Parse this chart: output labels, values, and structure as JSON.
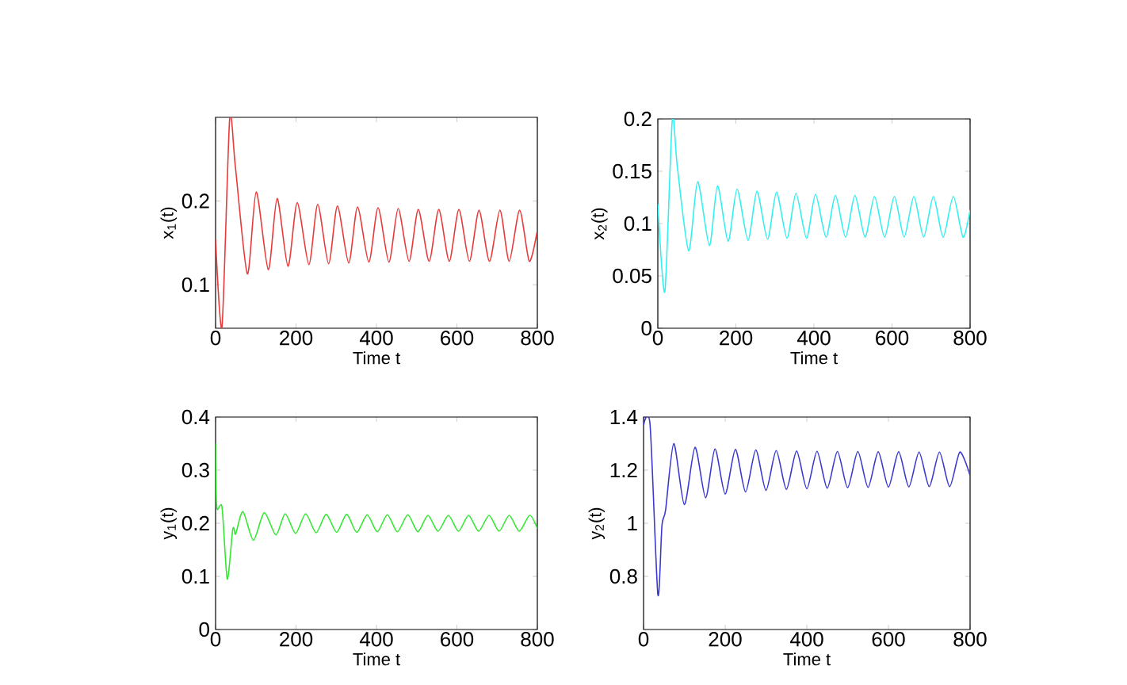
{
  "chart_data": [
    {
      "type": "line",
      "xlabel": "Time t",
      "ylabel": "x$_{1}$(t)",
      "xlim": [
        0,
        800
      ],
      "xticks": [
        0,
        200,
        400,
        600,
        800
      ],
      "ylim": [
        0.048,
        0.3
      ],
      "yticks": [
        0.1,
        0.2
      ],
      "grid": false,
      "x": [
        0,
        16,
        35,
        49,
        79,
        101,
        131,
        153,
        180,
        203,
        232,
        254,
        281,
        303,
        331,
        353,
        381,
        404,
        431,
        454,
        481,
        504,
        531,
        555,
        581,
        605,
        631,
        655,
        681,
        707,
        730,
        756,
        780,
        800
      ],
      "series": [
        {
          "color": "#e83a3a",
          "values": [
            0.154,
            0.05,
            0.298,
            0.242,
            0.113,
            0.211,
            0.118,
            0.203,
            0.122,
            0.198,
            0.124,
            0.196,
            0.125,
            0.194,
            0.126,
            0.193,
            0.127,
            0.192,
            0.127,
            0.191,
            0.128,
            0.19,
            0.128,
            0.19,
            0.128,
            0.19,
            0.128,
            0.189,
            0.128,
            0.189,
            0.128,
            0.189,
            0.128,
            0.165
          ]
        }
      ]
    },
    {
      "type": "line",
      "xlabel": "Time t",
      "ylabel": "x$_{2}$(t)",
      "xlim": [
        0,
        800
      ],
      "xticks": [
        0,
        200,
        400,
        600,
        800
      ],
      "ylim": [
        0,
        0.2
      ],
      "yticks": [
        0,
        0.05,
        0.1,
        0.15,
        0.2
      ],
      "grid": false,
      "x": [
        0,
        18,
        37,
        50,
        79,
        102,
        132,
        153,
        180,
        203,
        231,
        254,
        281,
        304,
        331,
        354,
        381,
        404,
        431,
        455,
        481,
        505,
        531,
        555,
        581,
        606,
        631,
        656,
        681,
        706,
        731,
        757,
        782,
        800
      ],
      "series": [
        {
          "color": "#33f0f0",
          "values": [
            0.119,
            0.035,
            0.199,
            0.154,
            0.074,
            0.14,
            0.079,
            0.136,
            0.083,
            0.133,
            0.084,
            0.131,
            0.085,
            0.13,
            0.086,
            0.129,
            0.086,
            0.128,
            0.087,
            0.127,
            0.087,
            0.127,
            0.087,
            0.126,
            0.087,
            0.126,
            0.087,
            0.126,
            0.087,
            0.126,
            0.087,
            0.126,
            0.087,
            0.113
          ]
        }
      ]
    },
    {
      "type": "line",
      "xlabel": "Time t",
      "ylabel": "y$_{1}$(t)",
      "xlim": [
        0,
        800
      ],
      "xticks": [
        0,
        200,
        400,
        600,
        800
      ],
      "ylim": [
        0,
        0.4
      ],
      "yticks": [
        0,
        0.1,
        0.2,
        0.3,
        0.4
      ],
      "grid": false,
      "x": [
        0,
        3,
        16,
        29,
        42,
        46,
        50,
        68,
        94,
        121,
        150,
        173,
        199,
        224,
        250,
        275,
        301,
        326,
        351,
        377,
        402,
        427,
        452,
        478,
        503,
        528,
        553,
        579,
        604,
        629,
        654,
        680,
        705,
        730,
        755,
        781,
        800
      ],
      "series": [
        {
          "color": "#33e833",
          "values": [
            0.35,
            0.23,
            0.23,
            0.095,
            0.185,
            0.19,
            0.18,
            0.222,
            0.168,
            0.22,
            0.178,
            0.218,
            0.181,
            0.218,
            0.182,
            0.217,
            0.183,
            0.217,
            0.183,
            0.216,
            0.184,
            0.216,
            0.184,
            0.216,
            0.184,
            0.215,
            0.185,
            0.215,
            0.185,
            0.215,
            0.185,
            0.215,
            0.185,
            0.215,
            0.185,
            0.215,
            0.19
          ]
        }
      ]
    },
    {
      "type": "line",
      "xlabel": "Time t",
      "ylabel": "y$_{2}$(t)",
      "xlim": [
        0,
        800
      ],
      "xticks": [
        0,
        200,
        400,
        600,
        800
      ],
      "ylim": [
        0.6,
        1.4
      ],
      "yticks": [
        0.8,
        1,
        1.2,
        1.4
      ],
      "grid": false,
      "x": [
        0,
        16,
        35,
        45,
        54,
        74,
        100,
        126,
        152,
        175,
        200,
        225,
        250,
        275,
        300,
        325,
        350,
        375,
        400,
        425,
        450,
        475,
        500,
        525,
        550,
        575,
        600,
        625,
        650,
        675,
        700,
        725,
        750,
        775,
        800
      ],
      "series": [
        {
          "color": "#3a3ad0",
          "values": [
            1.37,
            1.37,
            0.732,
            0.99,
            1.05,
            1.3,
            1.07,
            1.286,
            1.096,
            1.28,
            1.11,
            1.278,
            1.118,
            1.276,
            1.124,
            1.274,
            1.128,
            1.272,
            1.13,
            1.271,
            1.132,
            1.27,
            1.134,
            1.27,
            1.135,
            1.269,
            1.136,
            1.269,
            1.137,
            1.268,
            1.138,
            1.268,
            1.138,
            1.268,
            1.18
          ]
        }
      ]
    }
  ]
}
